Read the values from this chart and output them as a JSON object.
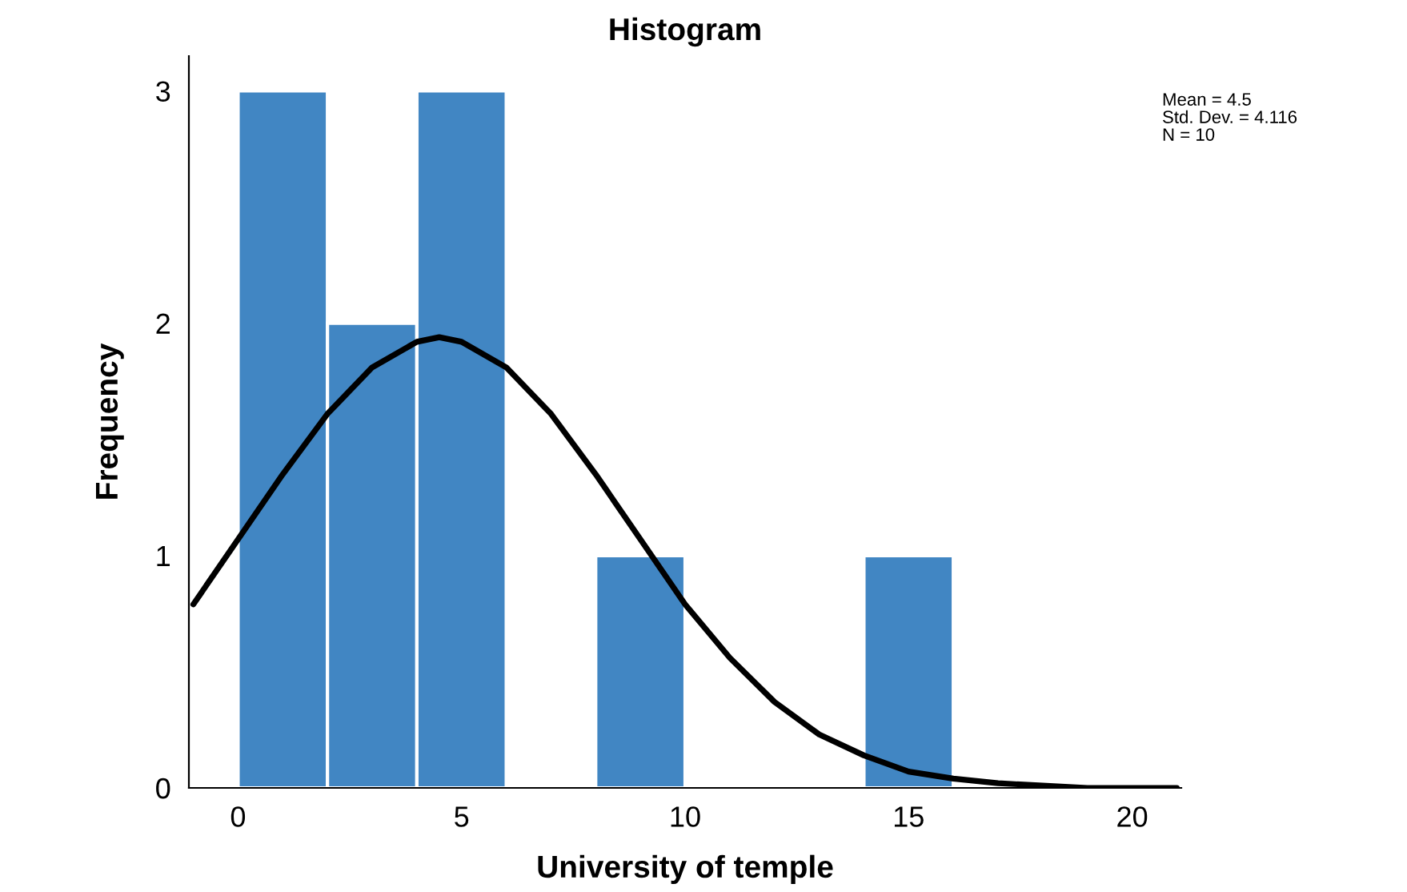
{
  "chart_data": {
    "type": "histogram",
    "title": "Histogram",
    "xlabel": "University of temple",
    "ylabel": "Frequency",
    "bins": [
      0,
      2,
      4,
      6,
      8,
      10,
      12,
      14,
      16
    ],
    "values": [
      3,
      2,
      3,
      0,
      1,
      0,
      0,
      1
    ],
    "color": "#4186c3",
    "series": [
      {
        "type": "line",
        "color": "#000000",
        "x": [
          -1,
          0,
          1,
          2,
          3,
          4,
          4.5,
          5,
          6,
          7,
          8,
          9,
          10,
          11,
          12,
          13,
          14,
          15,
          16,
          17,
          18,
          19,
          20,
          21
        ],
        "values": [
          0.79,
          1.07,
          1.35,
          1.61,
          1.81,
          1.92,
          1.94,
          1.92,
          1.81,
          1.61,
          1.35,
          1.07,
          0.79,
          0.56,
          0.37,
          0.23,
          0.14,
          0.07,
          0.04,
          0.02,
          0.01,
          0.0,
          0.0,
          0.0
        ]
      }
    ],
    "xlim": [
      -1.1,
      21.1
    ],
    "ylim": [
      0,
      3.15
    ],
    "xticks": [
      0,
      5,
      10,
      15,
      20
    ],
    "yticks": [
      0,
      1,
      2,
      3
    ],
    "grid": false,
    "legend": false,
    "marker": "none",
    "line_style": "solid",
    "annotations": [
      "Mean = 4.5",
      "Std. Dev. = 4.116",
      "N = 10"
    ]
  }
}
